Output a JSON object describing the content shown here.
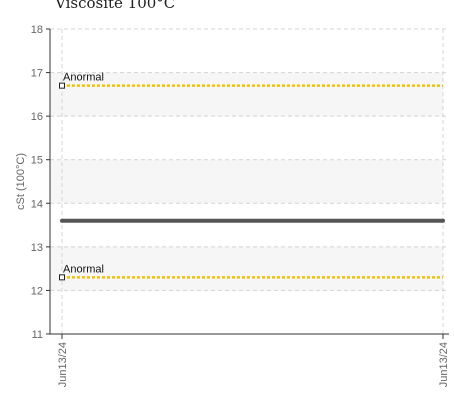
{
  "chart_data": {
    "type": "line",
    "title": "Viscosite 100°C",
    "ylabel": "cSt (100°C)",
    "xlabel": "",
    "ylim": [
      11,
      18
    ],
    "yticks": [
      11,
      12,
      13,
      14,
      15,
      16,
      17,
      18
    ],
    "xtick_labels": [
      "Jun13/24",
      "Jun13/24"
    ],
    "grid": true,
    "series": [
      {
        "values": [
          13.6,
          13.6
        ],
        "color": "#555555"
      }
    ],
    "thresholds": [
      {
        "label": "Anormal",
        "value": 16.7,
        "color": "#f2c20a"
      },
      {
        "label": "Anormal",
        "value": 12.3,
        "color": "#f2c20a"
      }
    ],
    "bands": [
      {
        "from": 12,
        "to": 13
      },
      {
        "from": 14,
        "to": 15
      },
      {
        "from": 16,
        "to": 17
      }
    ]
  }
}
